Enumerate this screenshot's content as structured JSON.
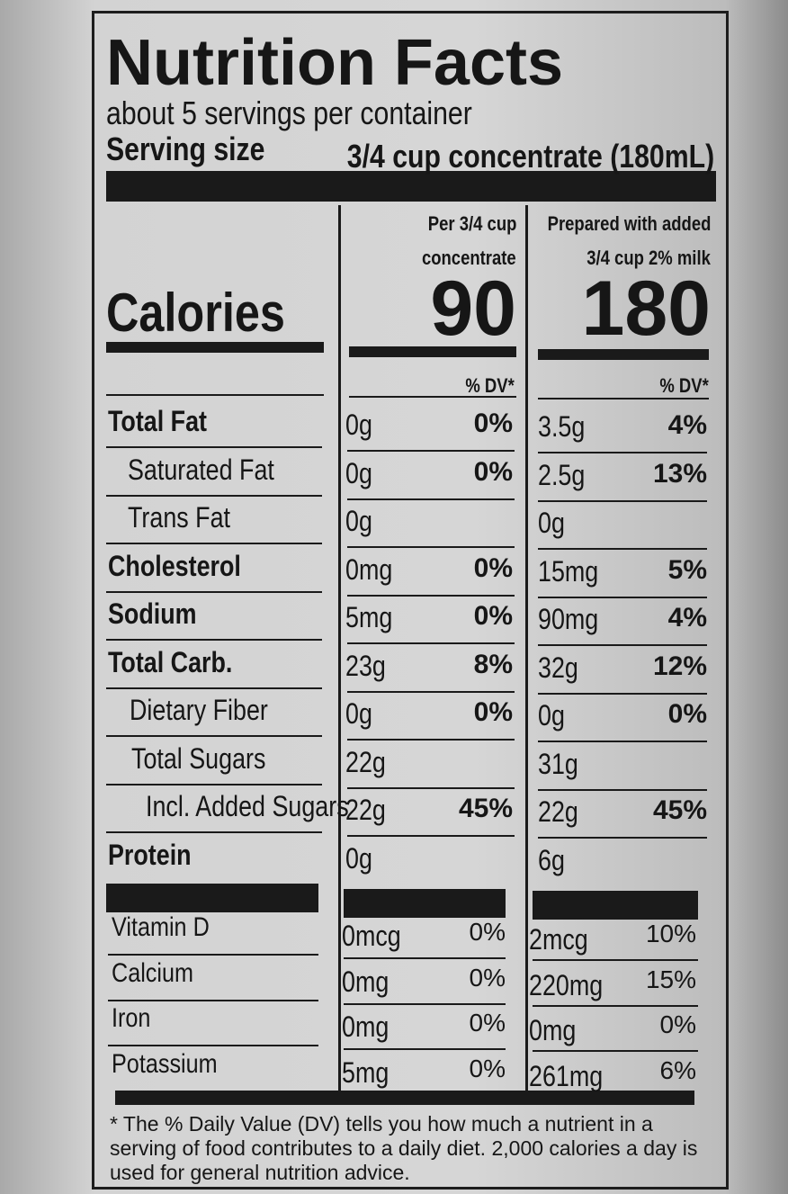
{
  "header": {
    "title": "Nutrition Facts",
    "servings": "about 5 servings per container",
    "serving_size_label": "Serving size",
    "serving_size_value": "3/4 cup concentrate (180mL)"
  },
  "calories_label": "Calories",
  "columns": [
    {
      "heading": [
        "Per 3/4 cup",
        "concentrate"
      ],
      "calories": "90",
      "dv_heading": "% DV*"
    },
    {
      "heading": [
        "Prepared with added",
        "3/4 cup 2% milk"
      ],
      "calories": "180",
      "dv_heading": "% DV*"
    }
  ],
  "nutrients": [
    [
      "Total Fat",
      "0g",
      "0%",
      "3.5g",
      "4%"
    ],
    [
      "Saturated Fat",
      "0g",
      "0%",
      "2.5g",
      "13%"
    ],
    [
      "Trans Fat",
      "0g",
      null,
      "0g",
      null
    ],
    [
      "Cholesterol",
      "0mg",
      "0%",
      "15mg",
      "5%"
    ],
    [
      "Sodium",
      "5mg",
      "0%",
      "90mg",
      "4%"
    ],
    [
      "Total Carb.",
      "23g",
      "8%",
      "32g",
      "12%"
    ],
    [
      "Dietary Fiber",
      "0g",
      "0%",
      "0g",
      "0%"
    ],
    [
      "Total Sugars",
      "22g",
      null,
      "31g",
      null
    ],
    [
      "Incl. Added Sugars",
      "22g",
      "45%",
      "22g",
      "45%"
    ],
    [
      "Protein",
      "0g",
      null,
      "6g",
      null
    ]
  ],
  "vitamins": [
    [
      "Vitamin D",
      "0mcg",
      "0%",
      "2mcg",
      "10%"
    ],
    [
      "Calcium",
      "0mg",
      "0%",
      "220mg",
      "15%"
    ],
    [
      "Iron",
      "0mg",
      "0%",
      "0mg",
      "0%"
    ],
    [
      "Potassium",
      "5mg",
      "0%",
      "261mg",
      "6%"
    ]
  ],
  "footnote": "* The % Daily Value (DV) tells you how much a nutrient in a serving of food contributes to a daily diet. 2,000 calories a day is used for general nutrition advice."
}
